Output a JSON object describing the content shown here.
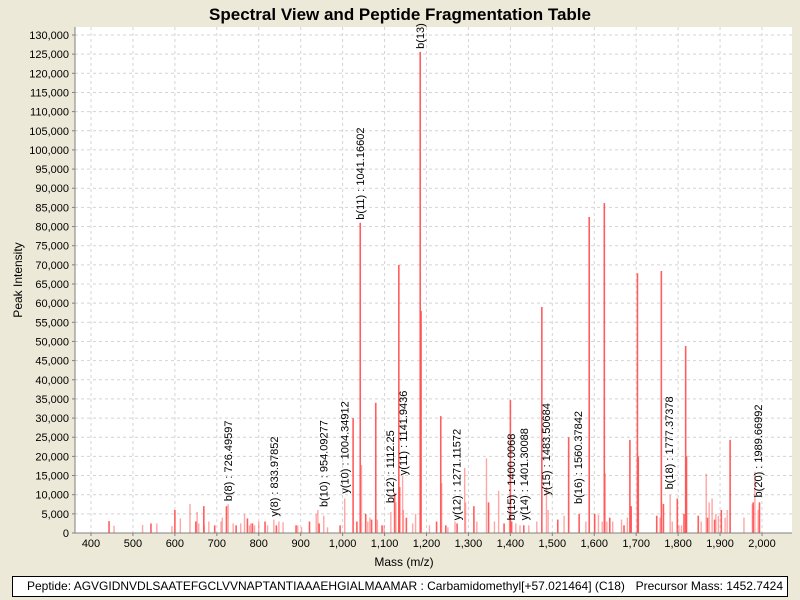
{
  "chart_data": {
    "type": "bar",
    "title": "Spectral View and Peptide Fragmentation Table",
    "xlabel": "Mass (m/z)",
    "ylabel": "Peak Intensity",
    "xlim": [
      370,
      2070
    ],
    "ylim": [
      0,
      132000
    ],
    "xticks": [
      400,
      500,
      600,
      700,
      800,
      900,
      1000,
      1100,
      1200,
      1300,
      1400,
      1500,
      1600,
      1700,
      1800,
      1900,
      2000
    ],
    "xtick_labels": [
      "400",
      "500",
      "600",
      "700",
      "800",
      "900",
      "1,000",
      "1,100",
      "1,200",
      "1,300",
      "1,400",
      "1,500",
      "1,600",
      "1,700",
      "1,800",
      "1,900",
      "2,000"
    ],
    "yticks": [
      0,
      5000,
      10000,
      15000,
      20000,
      25000,
      30000,
      35000,
      40000,
      45000,
      50000,
      55000,
      60000,
      65000,
      70000,
      75000,
      80000,
      85000,
      90000,
      95000,
      100000,
      105000,
      110000,
      115000,
      120000,
      125000,
      130000
    ],
    "ytick_labels": [
      "0",
      "5,000",
      "10,000",
      "15,000",
      "20,000",
      "25,000",
      "30,000",
      "35,000",
      "40,000",
      "45,000",
      "50,000",
      "55,000",
      "60,000",
      "65,000",
      "70,000",
      "75,000",
      "80,000",
      "85,000",
      "90,000",
      "95,000",
      "100,000",
      "105,000",
      "110,000",
      "115,000",
      "120,000",
      "125,000",
      "130,000"
    ],
    "grid": true,
    "peak_color": "#ff4d4d",
    "peaks": [
      [
        443,
        3100
      ],
      [
        455,
        1900
      ],
      [
        523,
        2100
      ],
      [
        543,
        2500
      ],
      [
        557,
        2500
      ],
      [
        593,
        1800
      ],
      [
        600,
        6000
      ],
      [
        613,
        3800
      ],
      [
        636,
        7600
      ],
      [
        650,
        3000
      ],
      [
        653,
        5500
      ],
      [
        657,
        2500
      ],
      [
        669,
        7000
      ],
      [
        670,
        2000
      ],
      [
        681,
        3000
      ],
      [
        695,
        2000
      ],
      [
        710,
        3000
      ],
      [
        713,
        4000
      ],
      [
        723,
        7000
      ],
      [
        727,
        7500
      ],
      [
        739,
        2500
      ],
      [
        746,
        2000
      ],
      [
        757,
        2500
      ],
      [
        766,
        5000
      ],
      [
        773,
        3800
      ],
      [
        778,
        2000
      ],
      [
        781,
        2500
      ],
      [
        785,
        2500
      ],
      [
        790,
        2000
      ],
      [
        800,
        3000
      ],
      [
        815,
        3000
      ],
      [
        821,
        2000
      ],
      [
        836,
        3500
      ],
      [
        842,
        2000
      ],
      [
        848,
        3000
      ],
      [
        858,
        2800
      ],
      [
        889,
        2000
      ],
      [
        893,
        2000
      ],
      [
        902,
        1500
      ],
      [
        921,
        3000
      ],
      [
        937,
        5000
      ],
      [
        941,
        6000
      ],
      [
        944,
        2500
      ],
      [
        955,
        4500
      ],
      [
        964,
        1500
      ],
      [
        994,
        2000
      ],
      [
        1005,
        9000
      ],
      [
        1025,
        30000
      ],
      [
        1034,
        3000
      ],
      [
        1042,
        81000
      ],
      [
        1045,
        17700
      ],
      [
        1055,
        5000
      ],
      [
        1060,
        3000
      ],
      [
        1065,
        4000
      ],
      [
        1069,
        3500
      ],
      [
        1079,
        34000
      ],
      [
        1083,
        3500
      ],
      [
        1094,
        2000
      ],
      [
        1099,
        2000
      ],
      [
        1115,
        5500
      ],
      [
        1124,
        10500
      ],
      [
        1127,
        8000
      ],
      [
        1134,
        70000
      ],
      [
        1136,
        12000
      ],
      [
        1143,
        15000
      ],
      [
        1145,
        6000
      ],
      [
        1152,
        4000
      ],
      [
        1167,
        2500
      ],
      [
        1174,
        5000
      ],
      [
        1185,
        125600
      ],
      [
        1187,
        58000
      ],
      [
        1207,
        2000
      ],
      [
        1224,
        3000
      ],
      [
        1234,
        30500
      ],
      [
        1236,
        13000
      ],
      [
        1246,
        2000
      ],
      [
        1251,
        1500
      ],
      [
        1268,
        3000
      ],
      [
        1273,
        2500
      ],
      [
        1291,
        17000
      ],
      [
        1293,
        8000
      ],
      [
        1313,
        7000
      ],
      [
        1320,
        3000
      ],
      [
        1343,
        19500
      ],
      [
        1348,
        8000
      ],
      [
        1362,
        3000
      ],
      [
        1372,
        11000
      ],
      [
        1385,
        2500
      ],
      [
        1398,
        5000
      ],
      [
        1400,
        34700
      ],
      [
        1403,
        3000
      ],
      [
        1413,
        2500
      ],
      [
        1423,
        2000
      ],
      [
        1432,
        2000
      ],
      [
        1444,
        2000
      ],
      [
        1463,
        3000
      ],
      [
        1475,
        59000
      ],
      [
        1486,
        12000
      ],
      [
        1490,
        6000
      ],
      [
        1513,
        3500
      ],
      [
        1528,
        4500
      ],
      [
        1539,
        25000
      ],
      [
        1564,
        5000
      ],
      [
        1580,
        3000
      ],
      [
        1588,
        82500
      ],
      [
        1601,
        5000
      ],
      [
        1610,
        4700
      ],
      [
        1619,
        3000
      ],
      [
        1624,
        86100
      ],
      [
        1626,
        15600
      ],
      [
        1630,
        3000
      ],
      [
        1637,
        4000
      ],
      [
        1644,
        3000
      ],
      [
        1665,
        3500
      ],
      [
        1671,
        2000
      ],
      [
        1679,
        4000
      ],
      [
        1685,
        24300
      ],
      [
        1688,
        7000
      ],
      [
        1703,
        67800
      ],
      [
        1705,
        20000
      ],
      [
        1749,
        4500
      ],
      [
        1757,
        4000
      ],
      [
        1760,
        68400
      ],
      [
        1765,
        7600
      ],
      [
        1781,
        10000
      ],
      [
        1786,
        3000
      ],
      [
        1798,
        9000
      ],
      [
        1802,
        2000
      ],
      [
        1808,
        2000
      ],
      [
        1814,
        5000
      ],
      [
        1818,
        48800
      ],
      [
        1820,
        20000
      ],
      [
        1848,
        4500
      ],
      [
        1855,
        3000
      ],
      [
        1867,
        15500
      ],
      [
        1870,
        4000
      ],
      [
        1874,
        8000
      ],
      [
        1881,
        9000
      ],
      [
        1887,
        3500
      ],
      [
        1890,
        5000
      ],
      [
        1896,
        4500
      ],
      [
        1903,
        6000
      ],
      [
        1912,
        4000
      ],
      [
        1917,
        6000
      ],
      [
        1924,
        24300
      ],
      [
        1957,
        4000
      ],
      [
        1977,
        7500
      ],
      [
        1979,
        8000
      ],
      [
        1983,
        16000
      ],
      [
        1991,
        6000
      ],
      [
        1994,
        8000
      ]
    ],
    "annotations": [
      {
        "label": "b(8) : 726.49597",
        "mass": 727,
        "intensity": 7500
      },
      {
        "label": "y(8) : 833.97852",
        "mass": 836,
        "intensity": 3500
      },
      {
        "label": "b(10) : 954.09277",
        "mass": 954,
        "intensity": 6000
      },
      {
        "label": "y(10) : 1004.34912",
        "mass": 1005,
        "intensity": 9500
      },
      {
        "label": "b(11) : 1041.16602",
        "mass": 1042,
        "intensity": 81000
      },
      {
        "label": "b(12) : 1112.25",
        "mass": 1113,
        "intensity": 7000
      },
      {
        "label": "y(11) : 1141.9436",
        "mass": 1142,
        "intensity": 14300
      },
      {
        "label": "b(13)",
        "mass": 1185,
        "intensity": 125600
      },
      {
        "label": "y(12) : 1271.11572",
        "mass": 1272,
        "intensity": 2500
      },
      {
        "label": "b(15) : 1400.0068",
        "mass": 1401,
        "intensity": 2500
      },
      {
        "label": "y(14) : 1401.30088",
        "mass": 1402,
        "intensity": 2500
      },
      {
        "label": "y(15) : 1483.50684",
        "mass": 1485,
        "intensity": 9000
      },
      {
        "label": "b(16) : 1560.37842",
        "mass": 1561,
        "intensity": 6800
      },
      {
        "label": "b(18) : 1777.37378",
        "mass": 1778,
        "intensity": 10600
      },
      {
        "label": "b(20) : 1989.66992",
        "mass": 1990,
        "intensity": 8500
      }
    ]
  },
  "footer": {
    "peptide": "Peptide: AGVGIDNVDLSAATEFGCLVVNAPTANTIAAAEHGIALMAAMAR : Carbamidomethyl[+57.021464] (C18)",
    "precursor": "Precursor Mass: 1452.7424"
  }
}
